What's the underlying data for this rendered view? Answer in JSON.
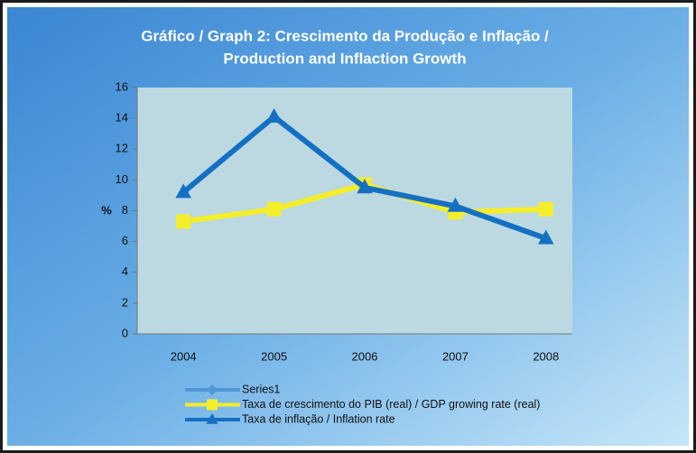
{
  "chart_data": {
    "type": "line",
    "title": [
      "Gráfico / Graph 2: Crescimento da Produção e Inflação /",
      "Production and Inflaction Growth"
    ],
    "y_label": "%",
    "categories": [
      "2004",
      "2005",
      "2006",
      "2007",
      "2008"
    ],
    "series": [
      {
        "name": "Series1",
        "color": "#4f97d8",
        "marker": "diamond",
        "values": [
          null,
          null,
          null,
          null,
          null
        ]
      },
      {
        "name": "Taxa de crescimento do PIB (real) / GDP growing rate (real)",
        "color": "#f4ee2a",
        "marker": "square",
        "values": [
          7.3,
          8.1,
          9.7,
          7.9,
          8.1
        ]
      },
      {
        "name": "Taxa de inflação / Inflation rate",
        "color": "#1570c4",
        "marker": "triangle",
        "values": [
          9.2,
          14.1,
          9.5,
          8.3,
          6.2
        ]
      }
    ],
    "ylim": [
      0,
      16
    ],
    "yticks": [
      0,
      2,
      4,
      6,
      8,
      10,
      12,
      14,
      16
    ],
    "grid": false
  }
}
